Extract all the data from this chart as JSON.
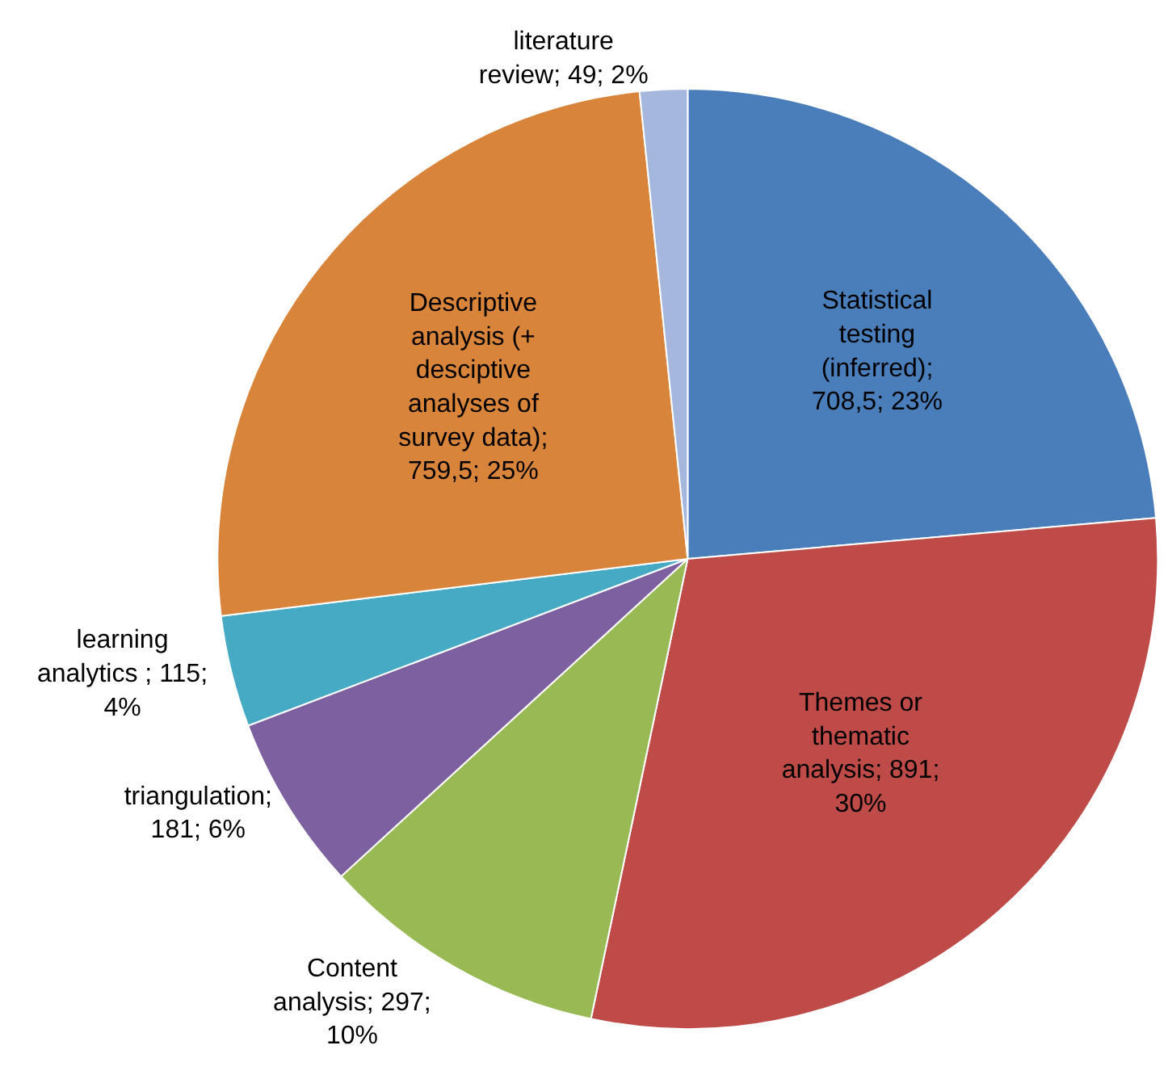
{
  "chart_data": {
    "type": "pie",
    "categories": [
      "Statistical testing (inferred)",
      "Themes or thematic analysis",
      "Content analysis",
      "triangulation",
      "learning analytics ",
      "Descriptive analysis (+ desciptive analyses of survey data)",
      "literature review"
    ],
    "values": [
      708.5,
      891,
      297,
      181,
      115,
      759.5,
      49
    ],
    "value_labels": [
      "; 708,5; 23%",
      "; 891; 30%",
      "; 297; 10%",
      "; 181; 6%",
      "; 115; 4%",
      "; 759,5; 25%",
      "; 49; 2%"
    ],
    "colors": [
      "#4a7ebb",
      "#be4b48",
      "#98b954",
      "#7d60a0",
      "#46aac5",
      "#d9843b",
      "#a5b7dd"
    ],
    "legend": false
  }
}
